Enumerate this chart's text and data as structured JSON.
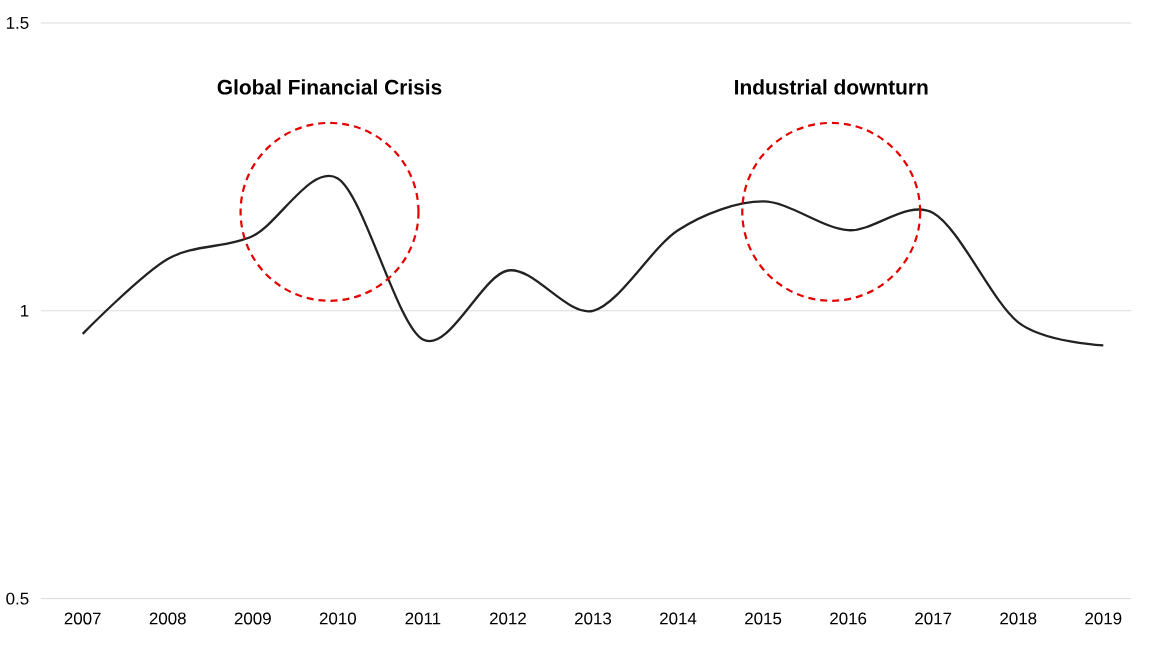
{
  "chart_data": {
    "type": "line",
    "categories": [
      "2007",
      "2008",
      "2009",
      "2010",
      "2011",
      "2012",
      "2013",
      "2014",
      "2015",
      "2016",
      "2017",
      "2018",
      "2019"
    ],
    "values": [
      0.96,
      1.09,
      1.13,
      1.23,
      0.95,
      1.07,
      1.0,
      1.14,
      1.19,
      1.14,
      1.17,
      0.98,
      0.94
    ],
    "color": "#222222",
    "ylim": [
      0.5,
      1.5
    ],
    "yticks": [
      0.5,
      1,
      1.5
    ],
    "grid": "y",
    "annotations": [
      "Global Financial Crisis",
      "Industrial downturn"
    ]
  }
}
